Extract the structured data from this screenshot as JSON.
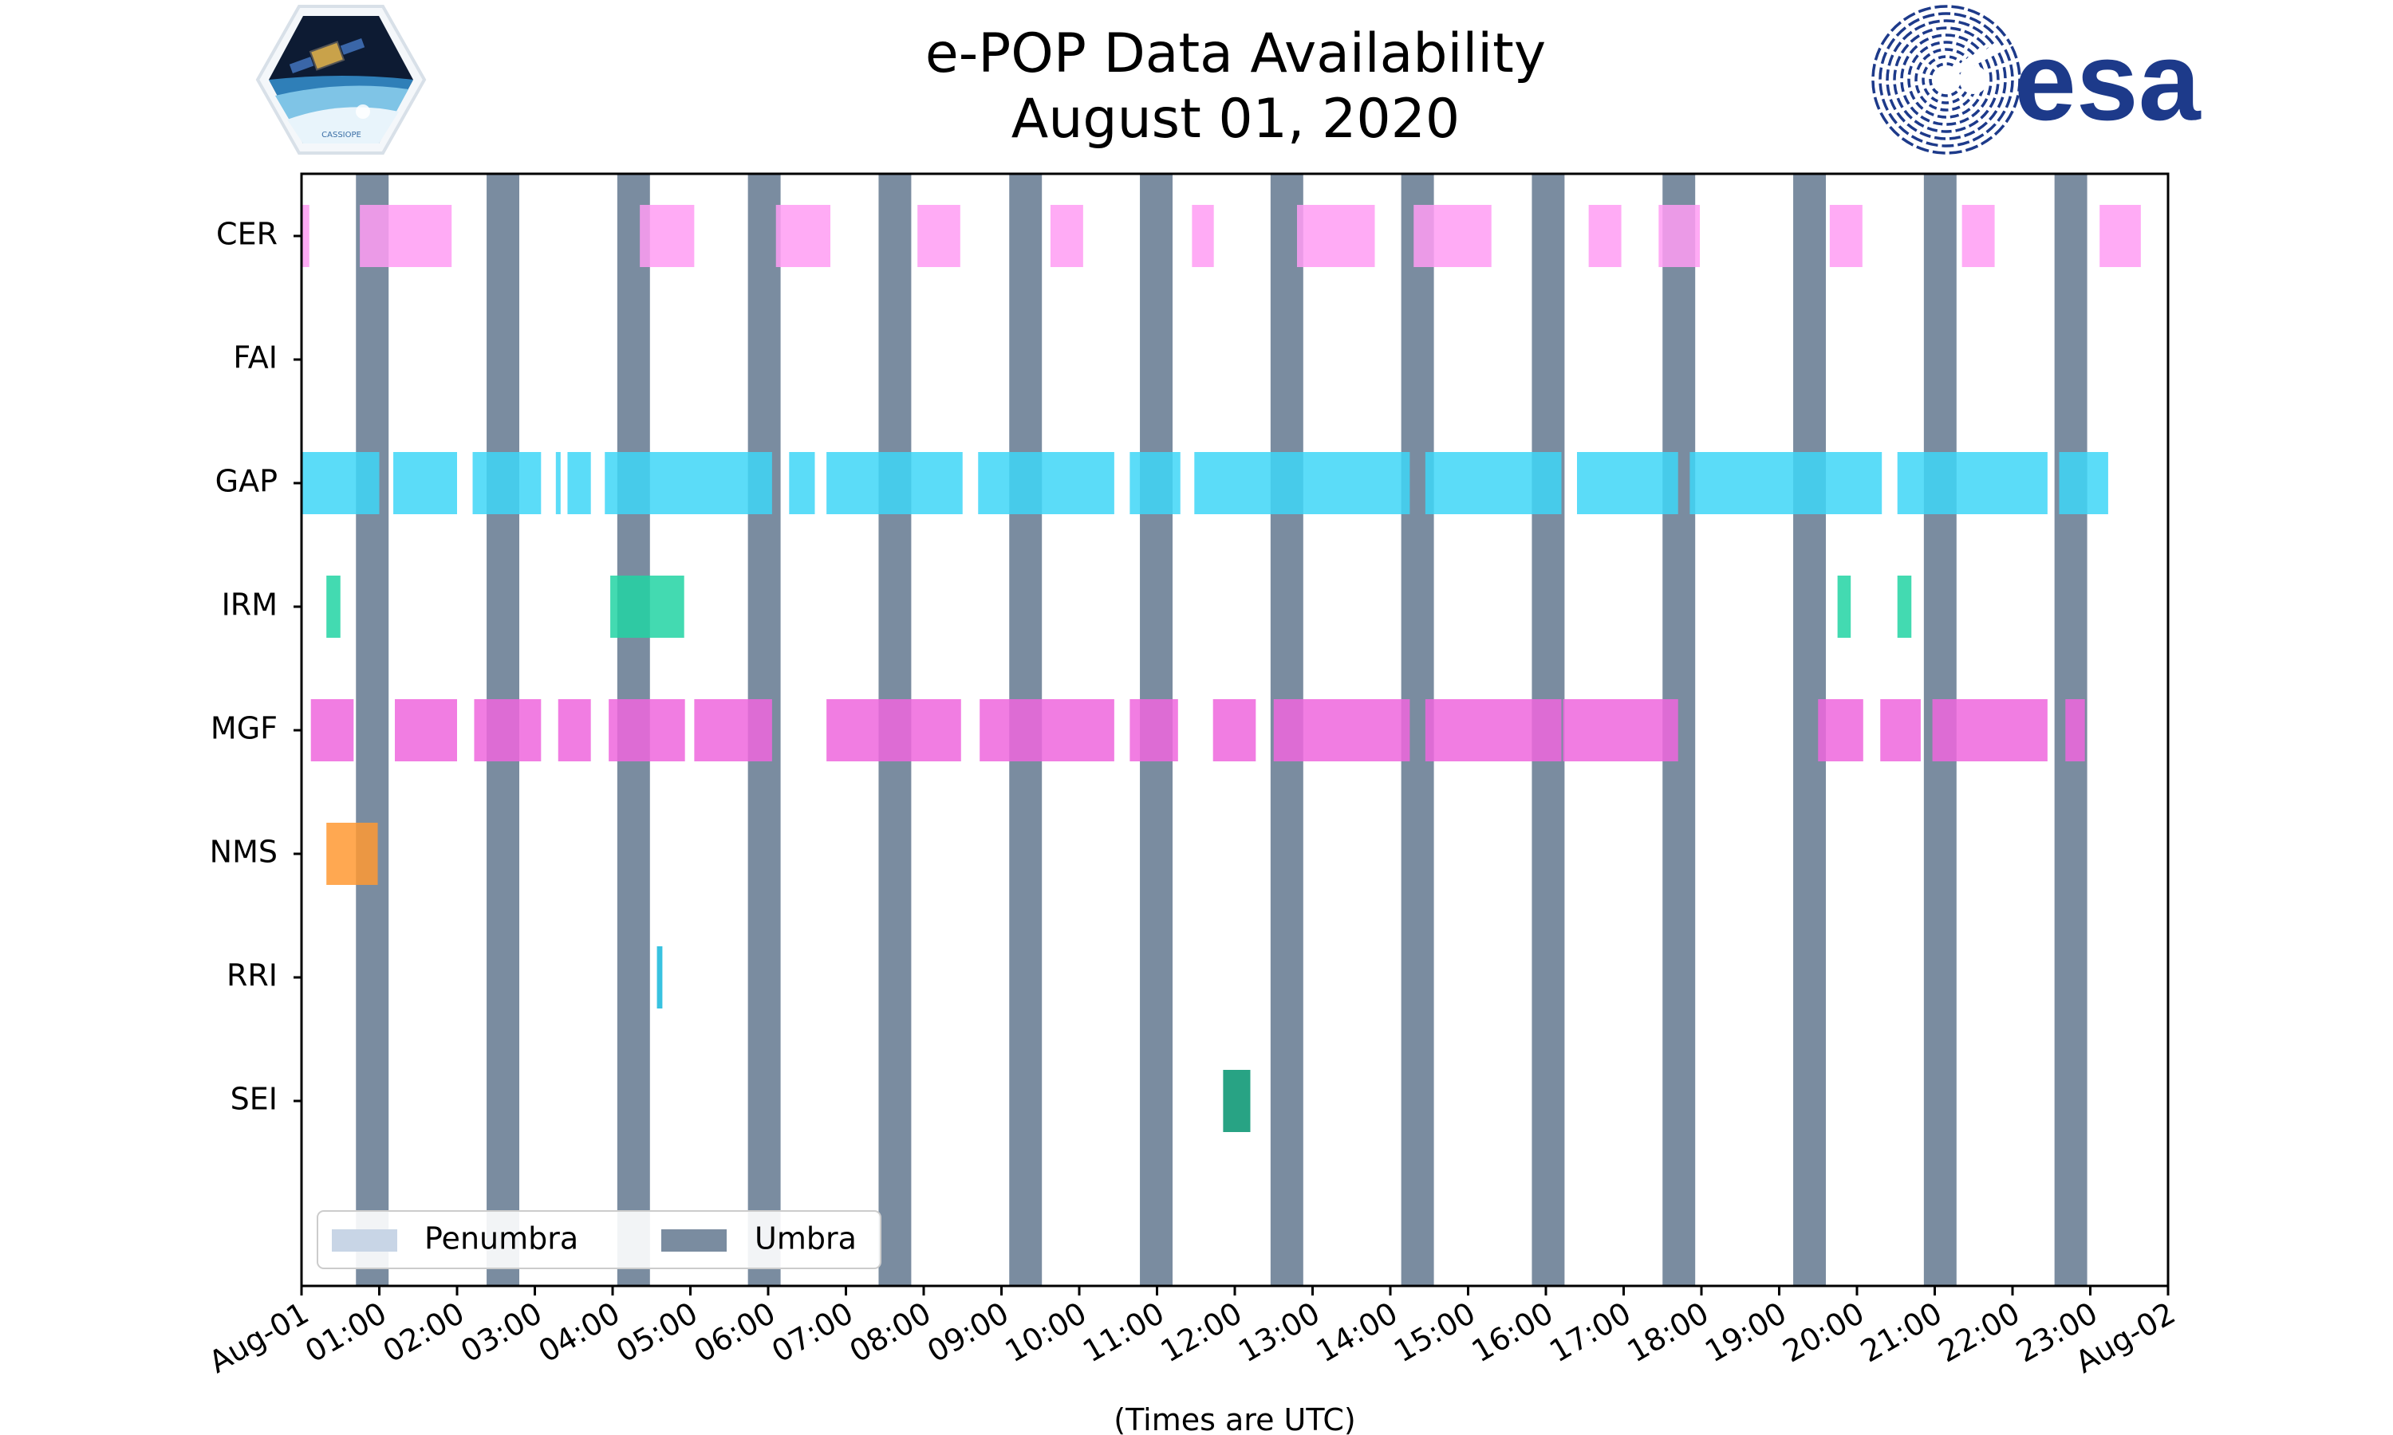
{
  "page": {
    "title": "e-POP Data Availability",
    "subtitle": "August 01, 2020",
    "mission_badge_text": "CASSIOPE",
    "agency_logo_text": "esa"
  },
  "chart_data": {
    "type": "timeline",
    "title": "e-POP Data Availability",
    "subtitle": "August 01, 2020",
    "xlabel": "(Times are UTC)",
    "x_unit": "hours",
    "xlim": [
      0,
      24
    ],
    "ticks": [
      "Aug-01",
      "01:00",
      "02:00",
      "03:00",
      "04:00",
      "05:00",
      "06:00",
      "07:00",
      "08:00",
      "09:00",
      "10:00",
      "11:00",
      "12:00",
      "13:00",
      "14:00",
      "15:00",
      "16:00",
      "17:00",
      "18:00",
      "19:00",
      "20:00",
      "21:00",
      "22:00",
      "23:00",
      "Aug-02"
    ],
    "instruments": [
      {
        "name": "CER",
        "color": "#ff9cf3",
        "opacity": 0.85,
        "intervals": [
          [
            0.0,
            0.1
          ],
          [
            0.75,
            1.93
          ],
          [
            4.35,
            5.05
          ],
          [
            6.1,
            6.8
          ],
          [
            7.92,
            8.47
          ],
          [
            9.63,
            10.05
          ],
          [
            11.45,
            11.73
          ],
          [
            12.8,
            13.8
          ],
          [
            14.3,
            15.3
          ],
          [
            16.55,
            16.97
          ],
          [
            17.45,
            17.98
          ],
          [
            19.65,
            20.07
          ],
          [
            21.35,
            21.77
          ],
          [
            23.12,
            23.65
          ]
        ]
      },
      {
        "name": "FAI",
        "color": "#7fbfff",
        "opacity": 0.85,
        "intervals": []
      },
      {
        "name": "GAP",
        "color": "#3ed6f7",
        "opacity": 0.85,
        "intervals": [
          [
            0.0,
            1.0
          ],
          [
            1.18,
            2.0
          ],
          [
            2.2,
            3.08
          ],
          [
            3.27,
            3.33
          ],
          [
            3.42,
            3.72
          ],
          [
            3.9,
            6.05
          ],
          [
            6.27,
            6.6
          ],
          [
            6.75,
            8.5
          ],
          [
            8.7,
            10.45
          ],
          [
            10.65,
            11.3
          ],
          [
            11.48,
            14.25
          ],
          [
            14.45,
            16.2
          ],
          [
            16.4,
            17.7
          ],
          [
            17.85,
            20.32
          ],
          [
            20.52,
            22.45
          ],
          [
            22.6,
            23.23
          ]
        ]
      },
      {
        "name": "IRM",
        "color": "#22d3a3",
        "opacity": 0.85,
        "intervals": [
          [
            0.32,
            0.5
          ],
          [
            3.97,
            4.92
          ],
          [
            19.75,
            19.92
          ],
          [
            20.52,
            20.7
          ]
        ]
      },
      {
        "name": "MGF",
        "color": "#ee66dd",
        "opacity": 0.85,
        "intervals": [
          [
            0.12,
            0.67
          ],
          [
            1.2,
            2.0
          ],
          [
            2.22,
            3.08
          ],
          [
            3.3,
            3.72
          ],
          [
            3.95,
            4.93
          ],
          [
            5.05,
            6.05
          ],
          [
            6.75,
            8.48
          ],
          [
            8.72,
            10.45
          ],
          [
            10.65,
            11.27
          ],
          [
            11.72,
            12.27
          ],
          [
            12.5,
            14.25
          ],
          [
            14.45,
            16.2
          ],
          [
            16.22,
            17.7
          ],
          [
            19.5,
            20.08
          ],
          [
            20.3,
            20.82
          ],
          [
            20.97,
            22.45
          ],
          [
            22.68,
            22.93
          ]
        ]
      },
      {
        "name": "NMS",
        "color": "#ff9933",
        "opacity": 0.85,
        "intervals": [
          [
            0.32,
            0.98
          ]
        ]
      },
      {
        "name": "RRI",
        "color": "#22bbdd",
        "opacity": 0.9,
        "intervals": [
          [
            4.57,
            4.64
          ]
        ]
      },
      {
        "name": "SEI",
        "color": "#119977",
        "opacity": 0.9,
        "intervals": [
          [
            11.85,
            12.2
          ]
        ]
      }
    ],
    "umbra": {
      "label": "Umbra",
      "color": "#7a8ca0",
      "intervals": [
        [
          0.7,
          1.12
        ],
        [
          2.38,
          2.8
        ],
        [
          4.06,
          4.48
        ],
        [
          5.74,
          6.16
        ],
        [
          7.42,
          7.84
        ],
        [
          9.1,
          9.52
        ],
        [
          10.78,
          11.2
        ],
        [
          12.46,
          12.88
        ],
        [
          14.14,
          14.56
        ],
        [
          15.82,
          16.24
        ],
        [
          17.5,
          17.92
        ],
        [
          19.18,
          19.6
        ],
        [
          20.86,
          21.28
        ],
        [
          22.54,
          22.96
        ]
      ]
    },
    "penumbra": {
      "label": "Penumbra",
      "color": "#c8d5e6",
      "intervals": []
    },
    "legend": {
      "position": "lower-left",
      "entries": [
        "Penumbra",
        "Umbra"
      ]
    }
  }
}
